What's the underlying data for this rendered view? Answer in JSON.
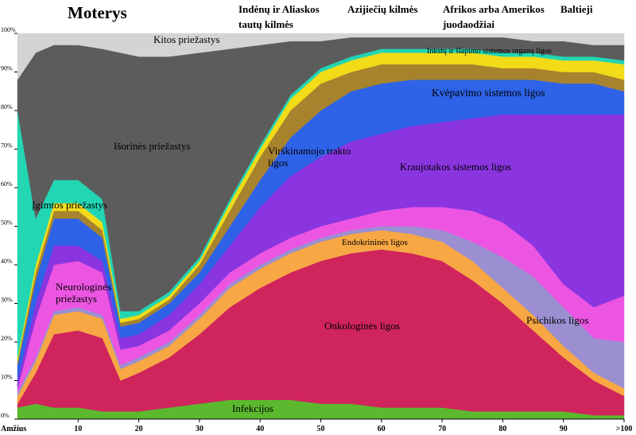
{
  "chart_data": {
    "type": "stacked_area",
    "title": "Moterys",
    "tabs": [
      "Indėnų ir Aliaskos tautų kilmės",
      "Azijiečių kilmės",
      "Afrikos arba Amerikos juodaodžiai",
      "Baltieji"
    ],
    "x_label": "Amžius",
    "x": [
      0,
      3,
      6,
      10,
      14,
      17,
      20,
      25,
      30,
      35,
      40,
      45,
      50,
      55,
      60,
      65,
      70,
      75,
      80,
      85,
      90,
      95,
      100
    ],
    "xlim": [
      0,
      100
    ],
    "xticks": [
      10,
      20,
      30,
      40,
      50,
      60,
      70,
      80,
      90,
      {
        "value": 100,
        "label": ">100"
      }
    ],
    "ylim": [
      0,
      100
    ],
    "yticks": [
      {
        "value": 0,
        "label": "0%"
      },
      {
        "value": 10,
        "label": "10%"
      },
      {
        "value": 20,
        "label": "20%"
      },
      {
        "value": 30,
        "label": "30%"
      },
      {
        "value": 40,
        "label": "40%"
      },
      {
        "value": 50,
        "label": "50%"
      },
      {
        "value": 60,
        "label": "60%"
      },
      {
        "value": 70,
        "label": "70%"
      },
      {
        "value": 80,
        "label": "80%"
      },
      {
        "value": 90,
        "label": "90%"
      },
      {
        "value": 100,
        "label": "100%"
      }
    ],
    "series": [
      {
        "name": "Infekcijos",
        "color": "#5cb82e",
        "values": [
          3,
          4,
          3,
          3,
          2,
          2,
          2,
          3,
          4,
          5,
          5,
          5,
          4,
          4,
          3,
          3,
          3,
          2,
          2,
          2,
          2,
          1,
          1
        ]
      },
      {
        "name": "Onkologinės ligos",
        "color": "#d0245c",
        "values": [
          1,
          8,
          19,
          20,
          19,
          8,
          10,
          13,
          18,
          24,
          29,
          33,
          37,
          39,
          41,
          40,
          38,
          34,
          28,
          21,
          14,
          9,
          5
        ]
      },
      {
        "name": "Endokrininės ligos",
        "color": "#f7a743",
        "values": [
          2,
          3,
          5,
          5,
          5,
          3,
          3,
          3,
          4,
          5,
          5,
          5,
          5,
          5,
          5,
          5,
          5,
          5,
          4,
          4,
          3,
          2,
          2
        ]
      },
      {
        "name": "Psichikos ligos",
        "color": "#9b8fd2",
        "values": [
          1,
          1,
          1,
          1,
          1,
          1,
          1,
          1,
          1,
          1,
          1,
          1,
          1,
          1,
          1,
          2,
          3,
          5,
          8,
          10,
          10,
          9,
          12
        ]
      },
      {
        "name": "Neurologinės priežastys",
        "color": "#ec55e2",
        "values": [
          1,
          10,
          12,
          12,
          11,
          4,
          3,
          3,
          3,
          3,
          3,
          3,
          3,
          3,
          4,
          5,
          6,
          8,
          9,
          8,
          6,
          8,
          12
        ]
      },
      {
        "name": "Kraujotakos sistemos ligos",
        "color": "#8a35e0",
        "values": [
          2,
          4,
          5,
          4,
          3,
          3,
          3,
          4,
          5,
          7,
          12,
          16,
          18,
          20,
          20,
          21,
          22,
          24,
          28,
          34,
          44,
          50,
          47
        ]
      },
      {
        "name": "Kvėpavimo sistemos ligos",
        "color": "#2e63e8",
        "values": [
          4,
          6,
          7,
          7,
          6,
          3,
          3,
          3,
          3,
          5,
          7,
          10,
          12,
          13,
          13,
          12,
          11,
          10,
          9,
          9,
          8,
          8,
          6
        ]
      },
      {
        "name": "Virškinamojo trakto ligos",
        "color": "#a8832e",
        "values": [
          1,
          2,
          2,
          2,
          2,
          1,
          1,
          1,
          2,
          4,
          6,
          7,
          7,
          5,
          5,
          4,
          4,
          4,
          3,
          3,
          3,
          3,
          3
        ]
      },
      {
        "name": "Inkstų ir šlapimo sistemos organų ligos",
        "color": "#f2dc18",
        "values": [
          1,
          2,
          2,
          2,
          2,
          1,
          1,
          1,
          1,
          2,
          2,
          3,
          3,
          3,
          3,
          3,
          3,
          3,
          3,
          3,
          3,
          3,
          4
        ]
      },
      {
        "name": "Įgimtos priežastys",
        "color": "#22d6b4",
        "values": [
          64,
          12,
          6,
          6,
          6,
          2,
          1,
          1,
          1,
          1,
          1,
          1,
          1,
          1,
          1,
          1,
          1,
          1,
          1,
          1,
          1,
          1,
          1
        ]
      },
      {
        "name": "Išorinės priežastys",
        "color": "#5c5c5c",
        "values": [
          8,
          43,
          35,
          35,
          39,
          67,
          66,
          61,
          53,
          39,
          26,
          14,
          7,
          5,
          3,
          3,
          3,
          3,
          4,
          3,
          4,
          3,
          4
        ]
      },
      {
        "name": "Kitos priežastys",
        "color": "#d4d4d4",
        "values": [
          12,
          5,
          3,
          3,
          4,
          5,
          6,
          6,
          5,
          4,
          3,
          2,
          2,
          1,
          1,
          1,
          1,
          1,
          1,
          2,
          2,
          3,
          3
        ]
      }
    ]
  }
}
